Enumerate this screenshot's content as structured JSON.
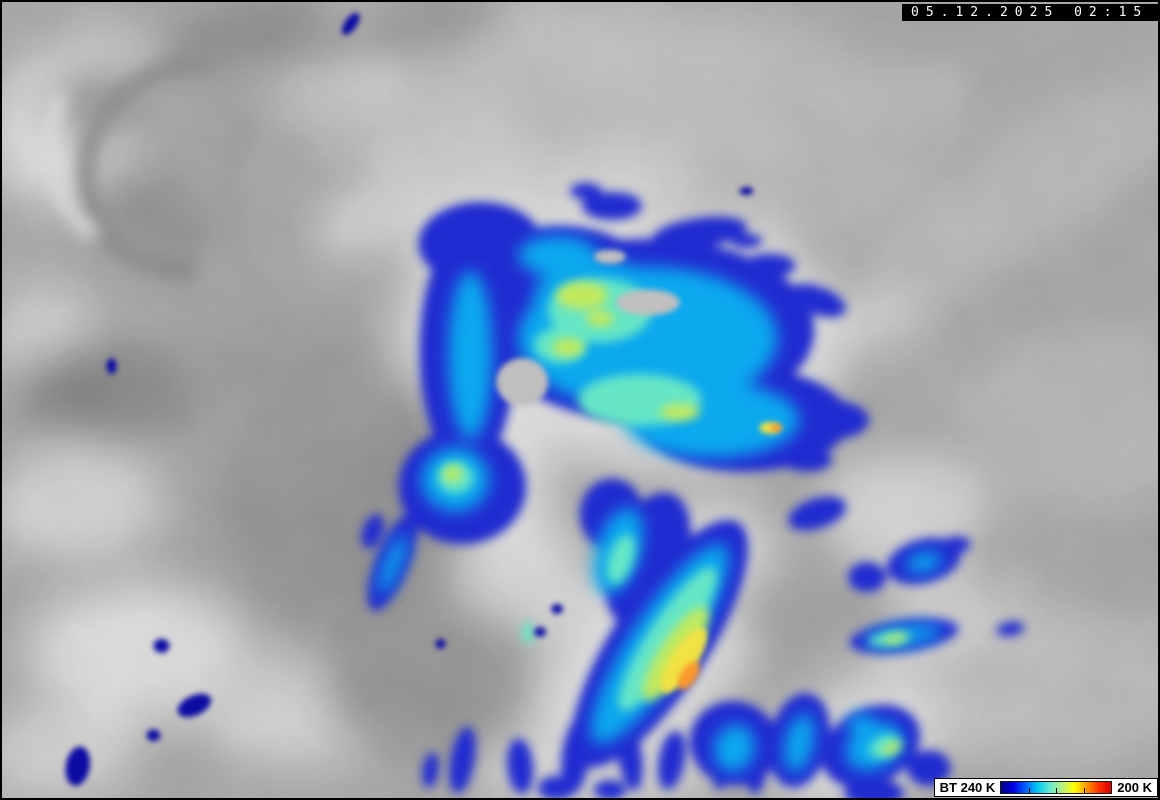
{
  "overlay": {
    "timestamp": "05.12.2025 02:15"
  },
  "legend": {
    "label_left": "BT 240 K",
    "label_right": "200 K",
    "unit": "K",
    "bt_start": 240,
    "bt_end": 200,
    "tick_count": 3,
    "colorbar_stops": [
      "#000080",
      "#0000e8",
      "#0060ff",
      "#00c8f0",
      "#68e8d0",
      "#b8f080",
      "#ffff00",
      "#ff9800",
      "#ff3000",
      "#d80000"
    ]
  },
  "palette": {
    "overlay_bg": "#000000",
    "overlay_fg": "#ffffff",
    "legend_bg": "#ffffff",
    "legend_fg": "#000000",
    "enhancement_edge_blue": "#1322cf",
    "enhancement_cyan": "#00a6ef",
    "enhancement_aqua": "#5fe6c4",
    "enhancement_yellow_green": "#bfe956",
    "enhancement_yellow": "#f2e23a",
    "enhancement_orange": "#ff9520",
    "enhancement_dark_navy": "#0000a0",
    "cloud_hole_gray": "#bdbdbd"
  }
}
